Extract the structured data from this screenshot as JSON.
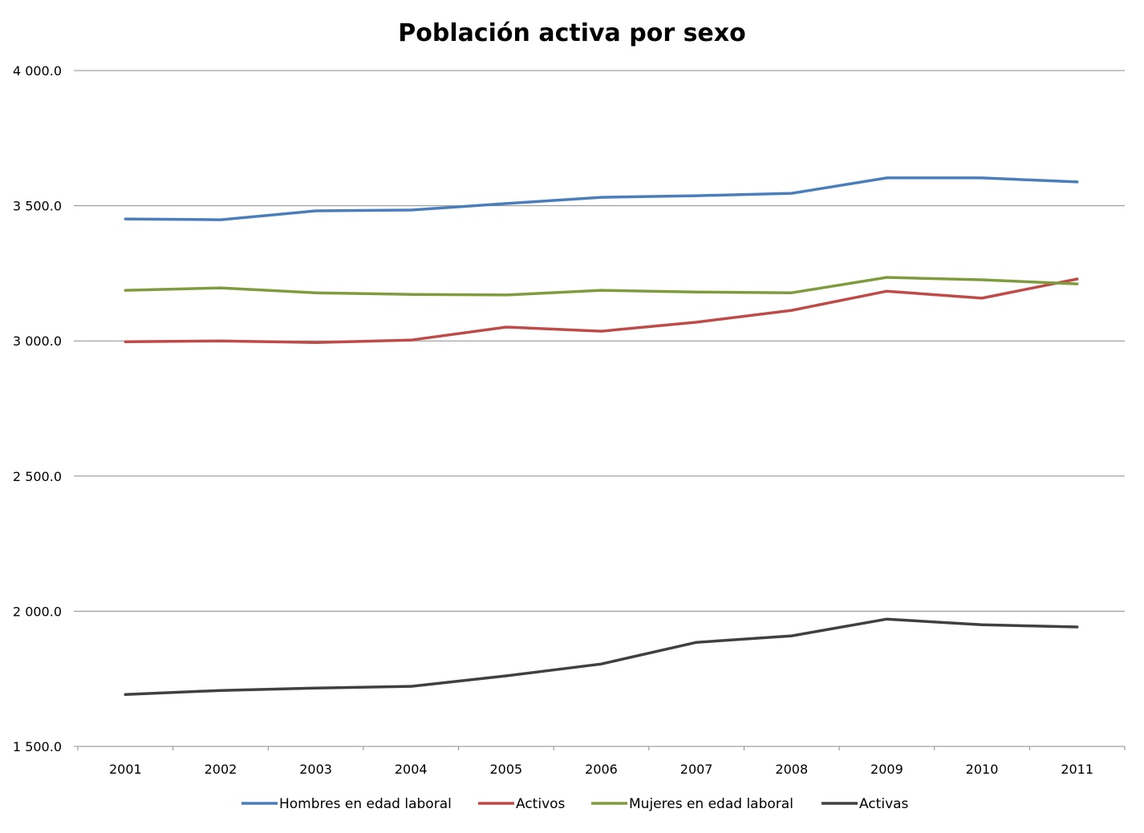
{
  "chart_data": {
    "type": "line",
    "title": "Población activa por sexo",
    "xlabel": "",
    "ylabel": "",
    "ylim": [
      1500,
      4000
    ],
    "yticks": [
      "1 500.0",
      "2 000.0",
      "2 500.0",
      "3 000.0",
      "3 500.0",
      "4 000.0"
    ],
    "ytick_values": [
      1500,
      2000,
      2500,
      3000,
      3500,
      4000
    ],
    "grid": true,
    "legend_position": "bottom",
    "categories": [
      "2001",
      "2002",
      "2003",
      "2004",
      "2005",
      "2006",
      "2007",
      "2008",
      "2009",
      "2010",
      "2011"
    ],
    "series": [
      {
        "name": "Hombres en edad laboral",
        "color": "#4a7ebb",
        "values": [
          3451,
          3448,
          3481,
          3484,
          3508,
          3531,
          3537,
          3546,
          3603,
          3603,
          3588
        ]
      },
      {
        "name": "Activos",
        "color": "#be4b48",
        "values": [
          2997,
          3000,
          2994,
          3003,
          3051,
          3036,
          3069,
          3113,
          3184,
          3158,
          3229
        ]
      },
      {
        "name": "Mujeres en edad laboral",
        "color": "#7e9c3e",
        "values": [
          3187,
          3196,
          3178,
          3172,
          3170,
          3187,
          3181,
          3178,
          3235,
          3226,
          3211
        ]
      },
      {
        "name": "Activas",
        "color": "#404040",
        "values": [
          1692,
          1707,
          1716,
          1722,
          1761,
          1805,
          1885,
          1909,
          1971,
          1950,
          1942
        ]
      }
    ]
  }
}
